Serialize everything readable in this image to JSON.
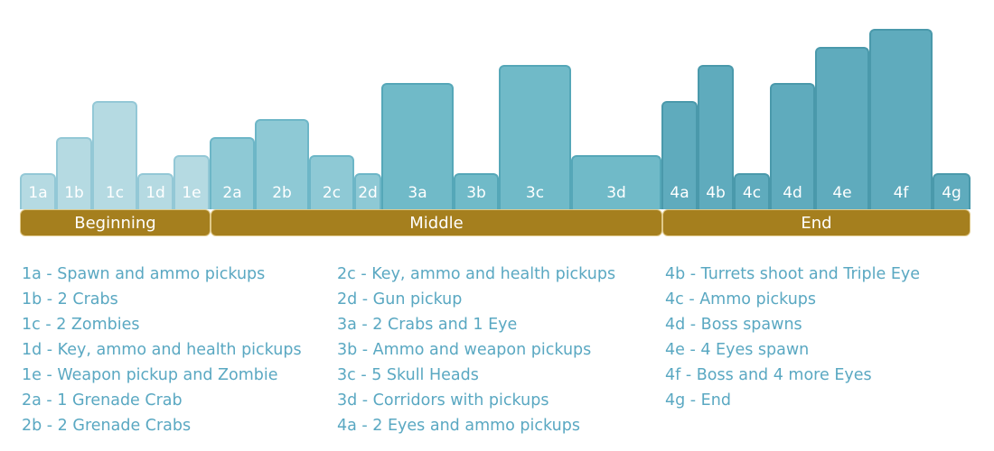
{
  "colors": {
    "section_fill": "#a57f1e",
    "section_border": "#e0c98a",
    "legend_text": "#5aa8c2"
  },
  "chart_data": {
    "type": "bar",
    "bars": [
      {
        "label": "1a",
        "level": 2,
        "section": "beginning",
        "fill": "#b5dae2",
        "stroke": "#93c8d6"
      },
      {
        "label": "1b",
        "level": 4,
        "section": "beginning",
        "fill": "#b5dae2",
        "stroke": "#93c8d6"
      },
      {
        "label": "1c",
        "level": 6,
        "section": "beginning",
        "fill": "#b5dae2",
        "stroke": "#93c8d6"
      },
      {
        "label": "1d",
        "level": 2,
        "section": "beginning",
        "fill": "#b5dae2",
        "stroke": "#93c8d6"
      },
      {
        "label": "1e",
        "level": 3,
        "section": "beginning",
        "fill": "#b5dae2",
        "stroke": "#93c8d6"
      },
      {
        "label": "2a",
        "level": 4,
        "section": "middle",
        "fill": "#8ec9d5",
        "stroke": "#6db6c7"
      },
      {
        "label": "2b",
        "level": 5,
        "section": "middle",
        "fill": "#8ec9d5",
        "stroke": "#6db6c7"
      },
      {
        "label": "2c",
        "level": 3,
        "section": "middle",
        "fill": "#8ec9d5",
        "stroke": "#6db6c7"
      },
      {
        "label": "2d",
        "level": 2,
        "section": "middle",
        "fill": "#8ec9d5",
        "stroke": "#6db6c7"
      },
      {
        "label": "3a",
        "level": 7,
        "section": "middle",
        "fill": "#70bac8",
        "stroke": "#55a7b8"
      },
      {
        "label": "3b",
        "level": 2,
        "section": "middle",
        "fill": "#70bac8",
        "stroke": "#55a7b8"
      },
      {
        "label": "3c",
        "level": 8,
        "section": "middle",
        "fill": "#70bac8",
        "stroke": "#55a7b8"
      },
      {
        "label": "3d",
        "level": 3,
        "section": "middle",
        "fill": "#70bac8",
        "stroke": "#55a7b8"
      },
      {
        "label": "4a",
        "level": 6,
        "section": "end",
        "fill": "#5fabbd",
        "stroke": "#4a99ab"
      },
      {
        "label": "4b",
        "level": 8,
        "section": "end",
        "fill": "#5fabbd",
        "stroke": "#4a99ab"
      },
      {
        "label": "4c",
        "level": 2,
        "section": "end",
        "fill": "#5fabbd",
        "stroke": "#4a99ab"
      },
      {
        "label": "4d",
        "level": 7,
        "section": "end",
        "fill": "#5fabbd",
        "stroke": "#4a99ab"
      },
      {
        "label": "4e",
        "level": 9,
        "section": "end",
        "fill": "#5fabbd",
        "stroke": "#4a99ab"
      },
      {
        "label": "4f",
        "level": 10,
        "section": "end",
        "fill": "#5fabbd",
        "stroke": "#4a99ab"
      },
      {
        "label": "4g",
        "level": 2,
        "section": "end",
        "fill": "#5fabbd",
        "stroke": "#4a99ab"
      }
    ]
  },
  "sections": {
    "beginning": "Beginning",
    "middle": "Middle",
    "end": "End"
  },
  "legend": {
    "col1": [
      "1a - Spawn and ammo pickups",
      "1b - 2 Crabs",
      "1c - 2 Zombies",
      "1d - Key, ammo and health pickups",
      "1e - Weapon pickup and Zombie",
      "2a - 1 Grenade Crab",
      "2b - 2 Grenade Crabs"
    ],
    "col2": [
      "2c - Key, ammo and health pickups",
      "2d - Gun pickup",
      "3a - 2 Crabs and 1 Eye",
      "3b - Ammo and weapon pickups",
      "3c - 5 Skull Heads",
      "3d - Corridors with pickups",
      "4a - 2 Eyes and ammo pickups"
    ],
    "col3": [
      "4b - Turrets shoot and Triple Eye",
      "4c - Ammo pickups",
      "4d - Boss spawns",
      "4e - 4 Eyes spawn",
      "4f - Boss and 4 more Eyes",
      "4g - End"
    ]
  }
}
